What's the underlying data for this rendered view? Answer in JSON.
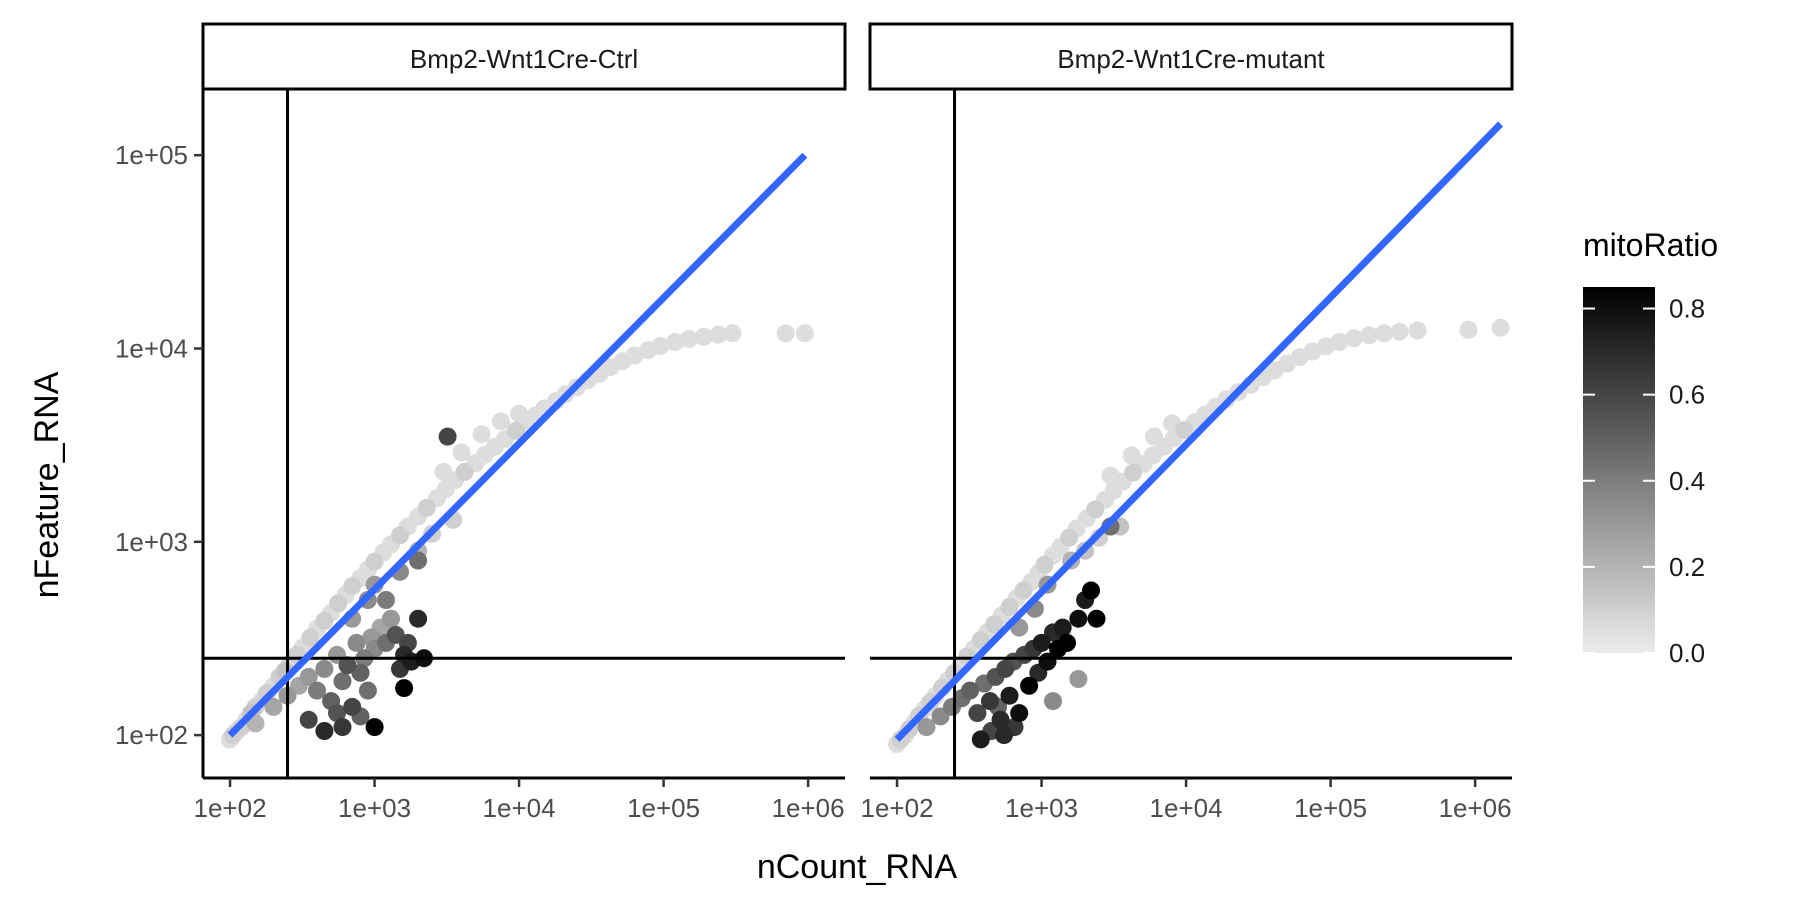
{
  "chart_data": {
    "type": "scatter",
    "x_scale": "log10",
    "y_scale": "log10",
    "xlabel": "nCount_RNA",
    "ylabel": "nFeature_RNA",
    "xlim": [
      65,
      1800000
    ],
    "ylim": [
      60,
      220000
    ],
    "x_ticks": [
      100,
      1000,
      10000,
      100000,
      1000000
    ],
    "x_tick_labels": [
      "1e+02",
      "1e+03",
      "1e+04",
      "1e+05",
      "1e+06"
    ],
    "y_ticks": [
      100,
      1000,
      10000,
      100000
    ],
    "y_tick_labels": [
      "1e+02",
      "1e+03",
      "1e+04",
      "1e+05"
    ],
    "threshold_lines": {
      "x": 250,
      "y": 250
    },
    "color_scale": {
      "title": "mitoRatio",
      "low_color": "#ebebeb",
      "high_color": "#000000",
      "range": [
        0,
        0.85
      ],
      "breaks": [
        0,
        0.2,
        0.4,
        0.6,
        0.8
      ],
      "break_labels": [
        "0.0",
        "0.2",
        "0.4",
        "0.6",
        "0.8"
      ]
    },
    "fit_line_color": "#3366ff",
    "facets": [
      {
        "label": "Bmp2-Wnt1Cre-Ctrl",
        "fit_line": [
          [
            100,
            100
          ],
          [
            950000,
            100000
          ]
        ],
        "points": [
          [
            100,
            95,
            0.05
          ],
          [
            105,
            100,
            0.1
          ],
          [
            112,
            105,
            0.05
          ],
          [
            120,
            110,
            0.1
          ],
          [
            130,
            120,
            0.05
          ],
          [
            140,
            130,
            0.15
          ],
          [
            150,
            140,
            0.1
          ],
          [
            165,
            150,
            0.05
          ],
          [
            180,
            165,
            0.1
          ],
          [
            200,
            180,
            0.05
          ],
          [
            220,
            200,
            0.1
          ],
          [
            240,
            215,
            0.15
          ],
          [
            260,
            235,
            0.05
          ],
          [
            290,
            260,
            0.1
          ],
          [
            320,
            285,
            0.05
          ],
          [
            360,
            320,
            0.1
          ],
          [
            400,
            355,
            0.05
          ],
          [
            450,
            390,
            0.1
          ],
          [
            500,
            430,
            0.05
          ],
          [
            560,
            480,
            0.1
          ],
          [
            630,
            530,
            0.05
          ],
          [
            700,
            590,
            0.1
          ],
          [
            800,
            650,
            0.05
          ],
          [
            900,
            720,
            0.05
          ],
          [
            1000,
            790,
            0.1
          ],
          [
            1150,
            880,
            0.05
          ],
          [
            1300,
            970,
            0.05
          ],
          [
            1500,
            1080,
            0.1
          ],
          [
            1700,
            1200,
            0.05
          ],
          [
            2000,
            1350,
            0.05
          ],
          [
            2300,
            1500,
            0.1
          ],
          [
            2700,
            1680,
            0.05
          ],
          [
            3100,
            1870,
            0.05
          ],
          [
            3600,
            2080,
            0.05
          ],
          [
            4200,
            2300,
            0.1
          ],
          [
            5000,
            2550,
            0.05
          ],
          [
            5800,
            2820,
            0.05
          ],
          [
            6800,
            3100,
            0.05
          ],
          [
            8000,
            3400,
            0.05
          ],
          [
            9500,
            3750,
            0.1
          ],
          [
            11000,
            4100,
            0.05
          ],
          [
            13000,
            4500,
            0.05
          ],
          [
            15000,
            4900,
            0.05
          ],
          [
            18000,
            5350,
            0.05
          ],
          [
            21000,
            5800,
            0.05
          ],
          [
            25000,
            6300,
            0.05
          ],
          [
            30000,
            6850,
            0.05
          ],
          [
            36000,
            7400,
            0.05
          ],
          [
            43000,
            8000,
            0.05
          ],
          [
            52000,
            8600,
            0.05
          ],
          [
            63000,
            9200,
            0.05
          ],
          [
            78000,
            9800,
            0.05
          ],
          [
            95000,
            10300,
            0.05
          ],
          [
            120000,
            10800,
            0.05
          ],
          [
            150000,
            11200,
            0.05
          ],
          [
            190000,
            11500,
            0.05
          ],
          [
            240000,
            11800,
            0.05
          ],
          [
            300000,
            12000,
            0.05
          ],
          [
            700000,
            12000,
            0.05
          ],
          [
            950000,
            12000,
            0.05
          ],
          [
            3000,
            2300,
            0.05
          ],
          [
            4000,
            2900,
            0.05
          ],
          [
            5500,
            3600,
            0.05
          ],
          [
            7500,
            4200,
            0.05
          ],
          [
            10000,
            4600,
            0.05
          ],
          [
            2500,
            1100,
            0.1
          ],
          [
            3500,
            1300,
            0.1
          ],
          [
            150,
            115,
            0.2
          ],
          [
            200,
            140,
            0.25
          ],
          [
            250,
            160,
            0.3
          ],
          [
            300,
            180,
            0.25
          ],
          [
            350,
            200,
            0.3
          ],
          [
            400,
            170,
            0.4
          ],
          [
            450,
            220,
            0.35
          ],
          [
            500,
            150,
            0.5
          ],
          [
            550,
            260,
            0.3
          ],
          [
            600,
            190,
            0.45
          ],
          [
            650,
            230,
            0.55
          ],
          [
            700,
            140,
            0.6
          ],
          [
            750,
            300,
            0.35
          ],
          [
            800,
            210,
            0.5
          ],
          [
            850,
            250,
            0.4
          ],
          [
            900,
            170,
            0.45
          ],
          [
            950,
            320,
            0.3
          ],
          [
            1000,
            280,
            0.35
          ],
          [
            1100,
            360,
            0.25
          ],
          [
            1200,
            300,
            0.45
          ],
          [
            1300,
            400,
            0.3
          ],
          [
            1400,
            330,
            0.55
          ],
          [
            1500,
            220,
            0.65
          ],
          [
            1600,
            260,
            0.7
          ],
          [
            1700,
            300,
            0.6
          ],
          [
            1800,
            240,
            0.75
          ],
          [
            2000,
            400,
            0.7
          ],
          [
            2200,
            250,
            0.8
          ],
          [
            1600,
            175,
            0.95
          ],
          [
            1000,
            110,
            1.0
          ],
          [
            350,
            120,
            0.6
          ],
          [
            450,
            105,
            0.7
          ],
          [
            600,
            110,
            0.65
          ],
          [
            550,
            130,
            0.55
          ],
          [
            800,
            125,
            0.5
          ],
          [
            1000,
            600,
            0.3
          ],
          [
            1200,
            500,
            0.4
          ],
          [
            1500,
            700,
            0.35
          ],
          [
            2000,
            900,
            0.2
          ],
          [
            700,
            400,
            0.3
          ],
          [
            900,
            500,
            0.35
          ],
          [
            3200,
            3500,
            0.6
          ],
          [
            2000,
            800,
            0.45
          ]
        ]
      },
      {
        "label": "Bmp2-Wnt1Cre-mutant",
        "fit_line": [
          [
            100,
            95
          ],
          [
            1500000,
            145000
          ]
        ],
        "points": [
          [
            100,
            90,
            0.05
          ],
          [
            106,
            95,
            0.1
          ],
          [
            114,
            100,
            0.05
          ],
          [
            122,
            108,
            0.1
          ],
          [
            132,
            116,
            0.05
          ],
          [
            142,
            126,
            0.1
          ],
          [
            155,
            136,
            0.05
          ],
          [
            170,
            148,
            0.1
          ],
          [
            185,
            160,
            0.05
          ],
          [
            205,
            176,
            0.1
          ],
          [
            225,
            192,
            0.05
          ],
          [
            250,
            210,
            0.1
          ],
          [
            275,
            230,
            0.05
          ],
          [
            305,
            255,
            0.1
          ],
          [
            340,
            280,
            0.05
          ],
          [
            380,
            310,
            0.1
          ],
          [
            420,
            340,
            0.05
          ],
          [
            470,
            375,
            0.1
          ],
          [
            530,
            415,
            0.05
          ],
          [
            600,
            460,
            0.1
          ],
          [
            670,
            510,
            0.05
          ],
          [
            750,
            560,
            0.1
          ],
          [
            850,
            620,
            0.05
          ],
          [
            950,
            690,
            0.05
          ],
          [
            1050,
            760,
            0.1
          ],
          [
            1200,
            850,
            0.05
          ],
          [
            1350,
            940,
            0.05
          ],
          [
            1550,
            1050,
            0.1
          ],
          [
            1750,
            1170,
            0.05
          ],
          [
            2050,
            1320,
            0.05
          ],
          [
            2350,
            1470,
            0.1
          ],
          [
            2750,
            1650,
            0.05
          ],
          [
            3150,
            1840,
            0.05
          ],
          [
            3650,
            2050,
            0.05
          ],
          [
            4300,
            2280,
            0.1
          ],
          [
            5100,
            2530,
            0.05
          ],
          [
            5900,
            2800,
            0.05
          ],
          [
            7000,
            3100,
            0.05
          ],
          [
            8200,
            3420,
            0.05
          ],
          [
            9700,
            3780,
            0.1
          ],
          [
            11500,
            4150,
            0.05
          ],
          [
            13500,
            4550,
            0.05
          ],
          [
            16000,
            5000,
            0.05
          ],
          [
            19000,
            5450,
            0.05
          ],
          [
            23000,
            5950,
            0.05
          ],
          [
            28000,
            6500,
            0.05
          ],
          [
            34000,
            7100,
            0.05
          ],
          [
            41000,
            7700,
            0.05
          ],
          [
            50000,
            8350,
            0.05
          ],
          [
            61000,
            9000,
            0.05
          ],
          [
            75000,
            9650,
            0.05
          ],
          [
            93000,
            10250,
            0.05
          ],
          [
            115000,
            10800,
            0.05
          ],
          [
            145000,
            11300,
            0.05
          ],
          [
            185000,
            11700,
            0.05
          ],
          [
            235000,
            12000,
            0.05
          ],
          [
            300000,
            12200,
            0.05
          ],
          [
            400000,
            12400,
            0.05
          ],
          [
            900000,
            12500,
            0.05
          ],
          [
            1500000,
            12800,
            0.05
          ],
          [
            3000,
            2200,
            0.05
          ],
          [
            4200,
            2800,
            0.05
          ],
          [
            6000,
            3500,
            0.05
          ],
          [
            8000,
            4100,
            0.05
          ],
          [
            2500,
            1050,
            0.1
          ],
          [
            3500,
            1200,
            0.15
          ],
          [
            160,
            110,
            0.3
          ],
          [
            200,
            125,
            0.35
          ],
          [
            240,
            140,
            0.4
          ],
          [
            280,
            155,
            0.45
          ],
          [
            320,
            170,
            0.5
          ],
          [
            360,
            130,
            0.6
          ],
          [
            400,
            185,
            0.45
          ],
          [
            440,
            150,
            0.65
          ],
          [
            480,
            200,
            0.55
          ],
          [
            520,
            120,
            0.7
          ],
          [
            560,
            220,
            0.6
          ],
          [
            600,
            160,
            0.75
          ],
          [
            640,
            240,
            0.55
          ],
          [
            700,
            130,
            0.8
          ],
          [
            760,
            260,
            0.6
          ],
          [
            820,
            180,
            0.85
          ],
          [
            880,
            280,
            0.65
          ],
          [
            950,
            210,
            0.7
          ],
          [
            1000,
            300,
            0.75
          ],
          [
            1100,
            240,
            0.8
          ],
          [
            1200,
            340,
            0.7
          ],
          [
            1300,
            280,
            0.85
          ],
          [
            1400,
            360,
            0.75
          ],
          [
            1500,
            300,
            0.9
          ],
          [
            1800,
            400,
            0.8
          ],
          [
            2000,
            500,
            0.75
          ],
          [
            2200,
            560,
            0.85
          ],
          [
            2400,
            400,
            0.95
          ],
          [
            1800,
            195,
            0.3
          ],
          [
            1200,
            150,
            0.35
          ],
          [
            380,
            95,
            0.75
          ],
          [
            450,
            105,
            0.6
          ],
          [
            550,
            100,
            0.7
          ],
          [
            650,
            110,
            0.65
          ],
          [
            500,
            140,
            0.5
          ],
          [
            900,
            450,
            0.35
          ],
          [
            1100,
            600,
            0.3
          ],
          [
            700,
            360,
            0.3
          ],
          [
            1600,
            800,
            0.2
          ],
          [
            3000,
            1200,
            0.45
          ],
          [
            2000,
            900,
            0.15
          ]
        ]
      }
    ]
  }
}
